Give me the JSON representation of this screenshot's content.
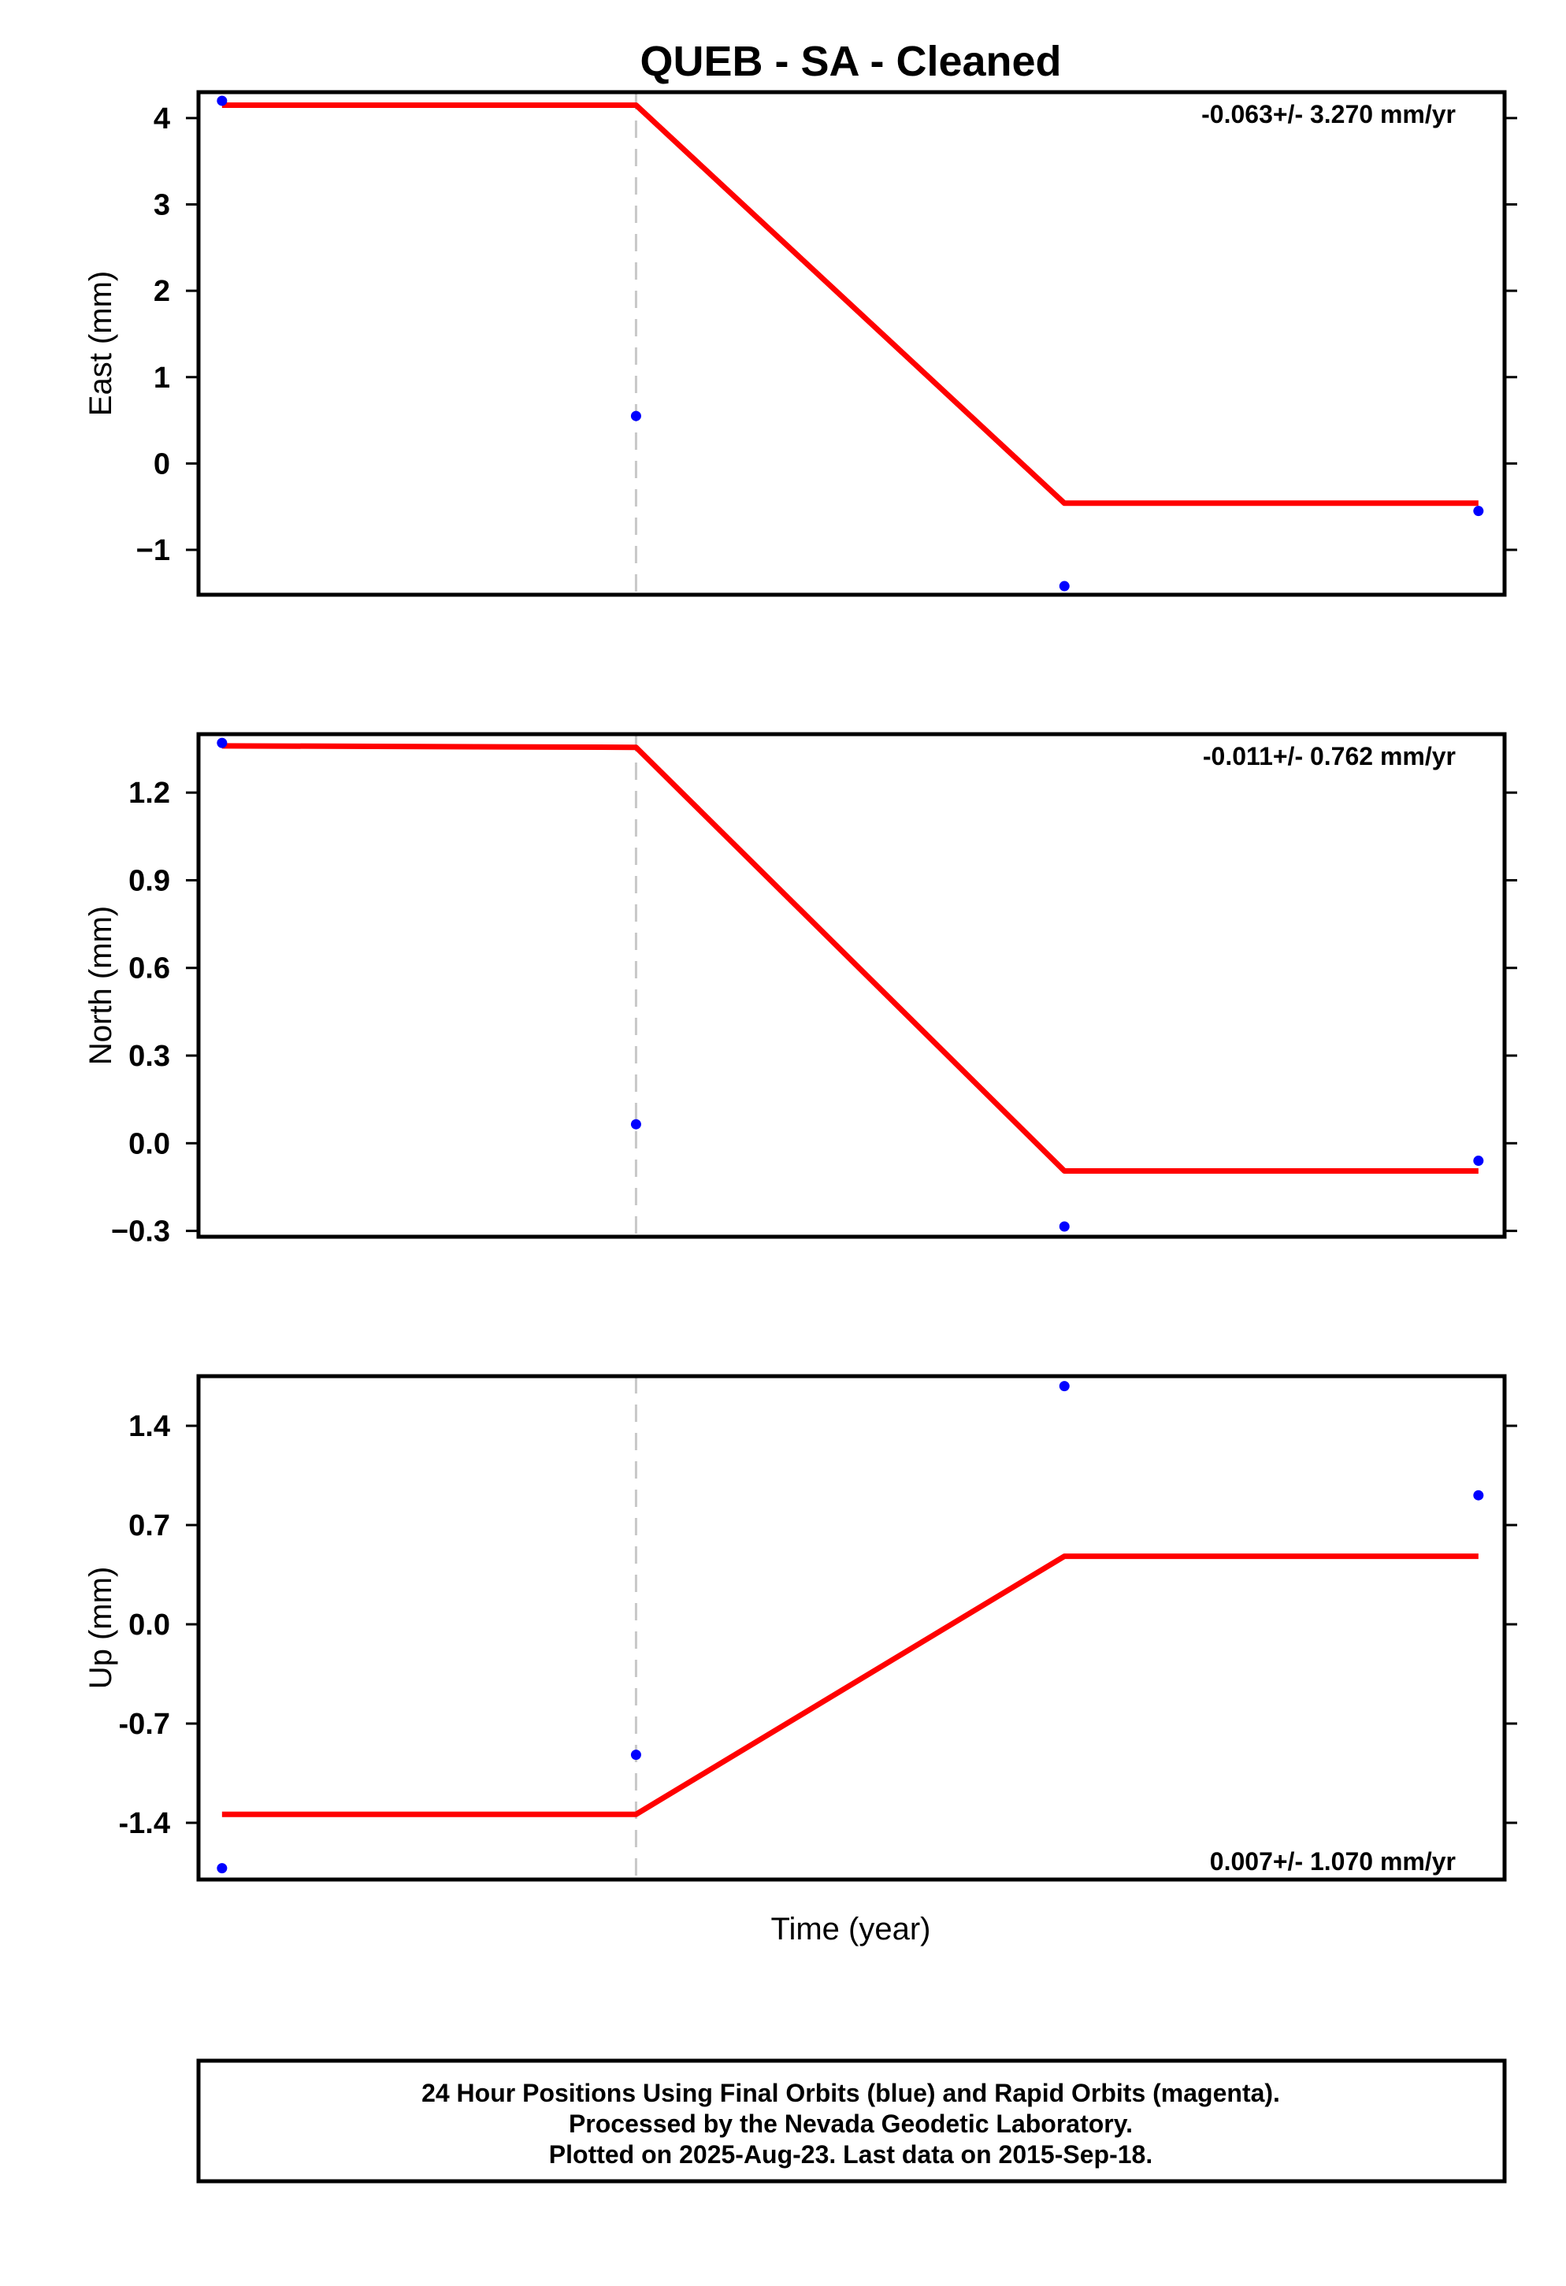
{
  "title": "QUEB  - SA - Cleaned",
  "xlabel": "Time (year)",
  "colors": {
    "model": "#ff0000",
    "final": "#0000ff",
    "break": "#c8c8c8",
    "frame": "#000000"
  },
  "footer": [
    "24 Hour Positions Using Final Orbits (blue) and Rapid Orbits (magenta).",
    "Processed by the Nevada Geodetic Laboratory.",
    "Plotted on 2025-Aug-23. Last data on 2015-Sep-18."
  ],
  "chart_data": [
    {
      "type": "scatter",
      "ylabel": "East (mm)",
      "rate": "-0.063+/- 3.270 mm/yr",
      "ylim": [
        -1.52,
        4.3
      ],
      "yticks": [
        4,
        3,
        2,
        1,
        0,
        -1
      ],
      "yticklabels": [
        "4",
        "3",
        "2",
        "1",
        "0",
        "−1"
      ],
      "xlim": [
        0,
        1
      ],
      "break_x": 0.335,
      "series": [
        {
          "x": [
            0.018,
            0.335,
            0.663,
            0.98
          ],
          "y": [
            4.2,
            0.55,
            -1.42,
            -0.55
          ]
        }
      ],
      "model": {
        "x": [
          0.018,
          0.335,
          0.663,
          0.98
        ],
        "y": [
          4.15,
          4.15,
          -0.46,
          -0.46
        ]
      }
    },
    {
      "type": "scatter",
      "ylabel": "North (mm)",
      "rate": "-0.011+/- 0.762 mm/yr",
      "ylim": [
        -0.32,
        1.4
      ],
      "yticks": [
        1.2,
        0.9,
        0.6,
        0.3,
        0.0,
        -0.3
      ],
      "yticklabels": [
        "1.2",
        "0.9",
        "0.6",
        "0.3",
        "0.0",
        "−0.3"
      ],
      "xlim": [
        0,
        1
      ],
      "break_x": 0.335,
      "series": [
        {
          "x": [
            0.018,
            0.335,
            0.663,
            0.98
          ],
          "y": [
            1.37,
            0.065,
            -0.285,
            -0.06
          ]
        }
      ],
      "model": {
        "x": [
          0.018,
          0.335,
          0.663,
          0.98
        ],
        "y": [
          1.36,
          1.355,
          -0.095,
          -0.095
        ]
      }
    },
    {
      "type": "scatter",
      "ylabel": "Up (mm)",
      "rate": "0.007+/- 1.070 mm/yr",
      "ylim": [
        -1.8,
        1.75
      ],
      "yticks": [
        1.4,
        0.7,
        0.0,
        -0.7,
        -1.4
      ],
      "yticklabels": [
        "1.4",
        "0.7",
        "0.0",
        "-0.7",
        "-1.4"
      ],
      "xlim": [
        0,
        1
      ],
      "break_x": 0.335,
      "series": [
        {
          "x": [
            0.018,
            0.335,
            0.663,
            0.98
          ],
          "y": [
            -1.72,
            -0.92,
            1.68,
            0.91
          ]
        }
      ],
      "model": {
        "x": [
          0.018,
          0.335,
          0.663,
          0.98
        ],
        "y": [
          -1.34,
          -1.34,
          0.48,
          0.48
        ]
      }
    }
  ]
}
